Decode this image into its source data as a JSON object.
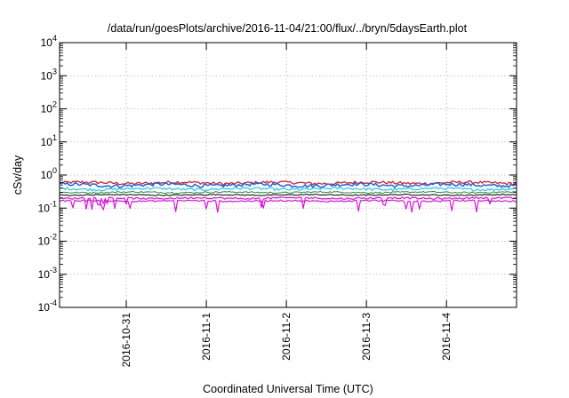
{
  "chart_data": {
    "type": "line",
    "title": "/data/run/goesPlots/archive/2016-11-04/21:00/flux/../bryn/5daysEarth.plot",
    "xlabel": "Coordinated Universal Time (UTC)",
    "ylabel": "cSv/day",
    "y_scale": "log",
    "ylim_exponents": [
      -4,
      4
    ],
    "yticks": [
      {
        "base": "10",
        "exp": "-4"
      },
      {
        "base": "10",
        "exp": "-3"
      },
      {
        "base": "10",
        "exp": "-2"
      },
      {
        "base": "10",
        "exp": "-1"
      },
      {
        "base": "10",
        "exp": "0"
      },
      {
        "base": "10",
        "exp": "1"
      },
      {
        "base": "10",
        "exp": "2"
      },
      {
        "base": "10",
        "exp": "3"
      },
      {
        "base": "10",
        "exp": "4"
      }
    ],
    "xlim": [
      "2016-10-30T04:00",
      "2016-11-04T21:00"
    ],
    "xticks": [
      "2016-10-31",
      "2016-11-1",
      "2016-11-2",
      "2016-11-3",
      "2016-11-4"
    ],
    "xtick_dates": [
      "2016-10-31",
      "2016-11-01",
      "2016-11-02",
      "2016-11-03",
      "2016-11-04"
    ],
    "grid": true,
    "series": [
      {
        "color": "#e8191f",
        "level": 0.58,
        "variation": 0.1,
        "dips": false,
        "width": 1.3
      },
      {
        "color": "#1463f0",
        "level": 0.5,
        "variation": 0.12,
        "dips": false,
        "width": 1.5
      },
      {
        "color": "#22c8e6",
        "level": 0.38,
        "variation": 0.09,
        "dips": false,
        "width": 1.2
      },
      {
        "color": "#1f8f2e",
        "level": 0.3,
        "variation": 0.05,
        "dips": false,
        "width": 1.0
      },
      {
        "color": "#000000",
        "level": 0.25,
        "variation": 0.04,
        "dips": false,
        "width": 1.0
      },
      {
        "color": "#e010e0",
        "level": 0.2,
        "variation": 0.06,
        "dips": true,
        "width": 1.2
      },
      {
        "color": "#e010e0",
        "level": 0.165,
        "variation": 0.05,
        "dips": true,
        "width": 1.2
      }
    ]
  }
}
